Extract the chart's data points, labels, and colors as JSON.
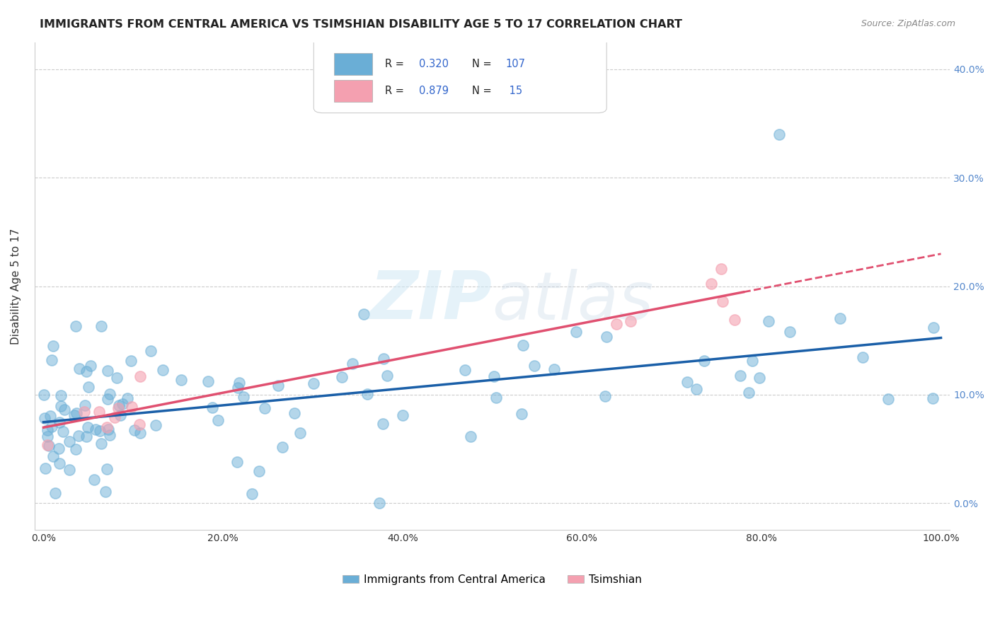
{
  "title": "IMMIGRANTS FROM CENTRAL AMERICA VS TSIMSHIAN DISABILITY AGE 5 TO 17 CORRELATION CHART",
  "source": "Source: ZipAtlas.com",
  "xlabel": "",
  "ylabel": "Disability Age 5 to 17",
  "legend_label_1": "Immigrants from Central America",
  "legend_label_2": "Tsimshian",
  "R1": 0.32,
  "N1": 107,
  "R2": 0.879,
  "N2": 15,
  "color_blue": "#6aaed6",
  "color_pink": "#f4a0b0",
  "line_color_blue": "#1a5fa8",
  "line_color_pink": "#e05070",
  "background_color": "#ffffff",
  "grid_color": "#cccccc",
  "xlim": [
    0.0,
    1.0
  ],
  "ylim": [
    -0.025,
    0.425
  ],
  "yticks": [
    0.0,
    0.1,
    0.2,
    0.3,
    0.4
  ],
  "xticks": [
    0.0,
    0.2,
    0.4,
    0.6,
    0.8,
    1.0
  ]
}
